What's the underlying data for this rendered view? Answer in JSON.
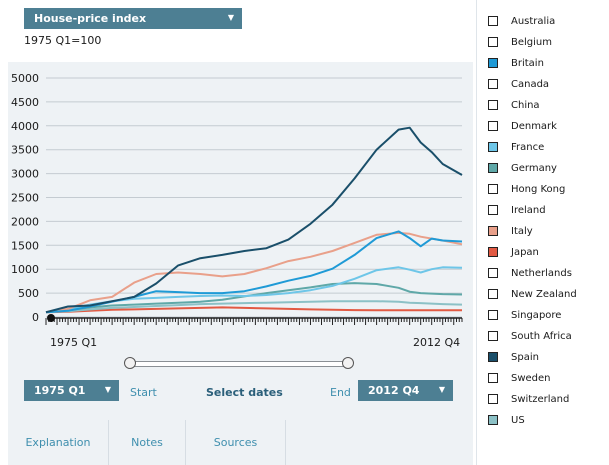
{
  "metric": {
    "label": "House-price index"
  },
  "baseline_note": "1975 Q1=100",
  "chart_data": {
    "type": "line",
    "title": "House-price index",
    "subtitle": "1975 Q1=100",
    "x": [
      1975,
      1977,
      1979,
      1981,
      1983,
      1985,
      1987,
      1989,
      1991,
      1993,
      1995,
      1997,
      1999,
      2001,
      2003,
      2005,
      2007,
      2008,
      2009,
      2010,
      2011,
      2012.75
    ],
    "x_start_label": "1975 Q1",
    "x_end_label": "2012 Q4",
    "ylim": [
      0,
      5000
    ],
    "yticks": [
      0,
      500,
      1000,
      1500,
      2000,
      2500,
      3000,
      3500,
      4000,
      4500,
      5000
    ],
    "grid": true,
    "series": [
      {
        "name": "Spain",
        "color": "#1a4f6a",
        "values": [
          100,
          220,
          240,
          330,
          420,
          700,
          1080,
          1230,
          1300,
          1380,
          1440,
          1620,
          1950,
          2350,
          2900,
          3500,
          3920,
          3960,
          3650,
          3450,
          3200,
          2970
        ]
      },
      {
        "name": "Britain",
        "color": "#1f9ad6",
        "values": [
          100,
          130,
          220,
          320,
          420,
          540,
          520,
          500,
          500,
          540,
          640,
          760,
          860,
          1010,
          1300,
          1650,
          1790,
          1650,
          1480,
          1640,
          1600,
          1580
        ]
      },
      {
        "name": "Italy",
        "color": "#e9a08a",
        "values": [
          100,
          170,
          350,
          420,
          720,
          900,
          930,
          900,
          850,
          900,
          1020,
          1170,
          1260,
          1380,
          1550,
          1720,
          1760,
          1740,
          1680,
          1640,
          1600,
          1520
        ]
      },
      {
        "name": "France",
        "color": "#6ec6e8",
        "values": [
          100,
          160,
          260,
          330,
          380,
          400,
          420,
          440,
          450,
          440,
          460,
          500,
          560,
          650,
          800,
          980,
          1040,
          990,
          930,
          1000,
          1040,
          1030
        ]
      },
      {
        "name": "Germany",
        "color": "#5fa8a8",
        "values": [
          100,
          140,
          200,
          240,
          260,
          280,
          300,
          320,
          360,
          430,
          500,
          560,
          620,
          690,
          710,
          690,
          610,
          530,
          500,
          490,
          480,
          470
        ]
      },
      {
        "name": "US",
        "color": "#8cc1c6",
        "values": [
          100,
          120,
          160,
          190,
          210,
          230,
          250,
          270,
          280,
          290,
          300,
          310,
          320,
          330,
          330,
          330,
          320,
          300,
          290,
          280,
          270,
          260
        ]
      },
      {
        "name": "Japan",
        "color": "#e25a43",
        "values": [
          100,
          110,
          130,
          150,
          160,
          170,
          180,
          190,
          200,
          190,
          180,
          170,
          160,
          150,
          145,
          140,
          140,
          140,
          140,
          140,
          140,
          140
        ]
      }
    ]
  },
  "range": {
    "start_value": "1975 Q1",
    "end_value": "2012 Q4",
    "start_label": "Start",
    "end_label": "End",
    "select_dates": "Select dates"
  },
  "tabs": [
    "Explanation",
    "Notes",
    "Sources"
  ],
  "legend": [
    {
      "name": "Australia",
      "color": "#ffffff"
    },
    {
      "name": "Belgium",
      "color": "#ffffff"
    },
    {
      "name": "Britain",
      "color": "#1f9ad6"
    },
    {
      "name": "Canada",
      "color": "#ffffff"
    },
    {
      "name": "China",
      "color": "#ffffff"
    },
    {
      "name": "Denmark",
      "color": "#ffffff"
    },
    {
      "name": "France",
      "color": "#6ec6e8"
    },
    {
      "name": "Germany",
      "color": "#5fa8a8"
    },
    {
      "name": "Hong Kong",
      "color": "#ffffff"
    },
    {
      "name": "Ireland",
      "color": "#ffffff"
    },
    {
      "name": "Italy",
      "color": "#e9a08a"
    },
    {
      "name": "Japan",
      "color": "#e25a43"
    },
    {
      "name": "Netherlands",
      "color": "#ffffff"
    },
    {
      "name": "New Zealand",
      "color": "#ffffff"
    },
    {
      "name": "Singapore",
      "color": "#ffffff"
    },
    {
      "name": "South Africa",
      "color": "#ffffff"
    },
    {
      "name": "Spain",
      "color": "#1a4f6a"
    },
    {
      "name": "Sweden",
      "color": "#ffffff"
    },
    {
      "name": "Switzerland",
      "color": "#ffffff"
    },
    {
      "name": "US",
      "color": "#8cc1c6"
    }
  ]
}
